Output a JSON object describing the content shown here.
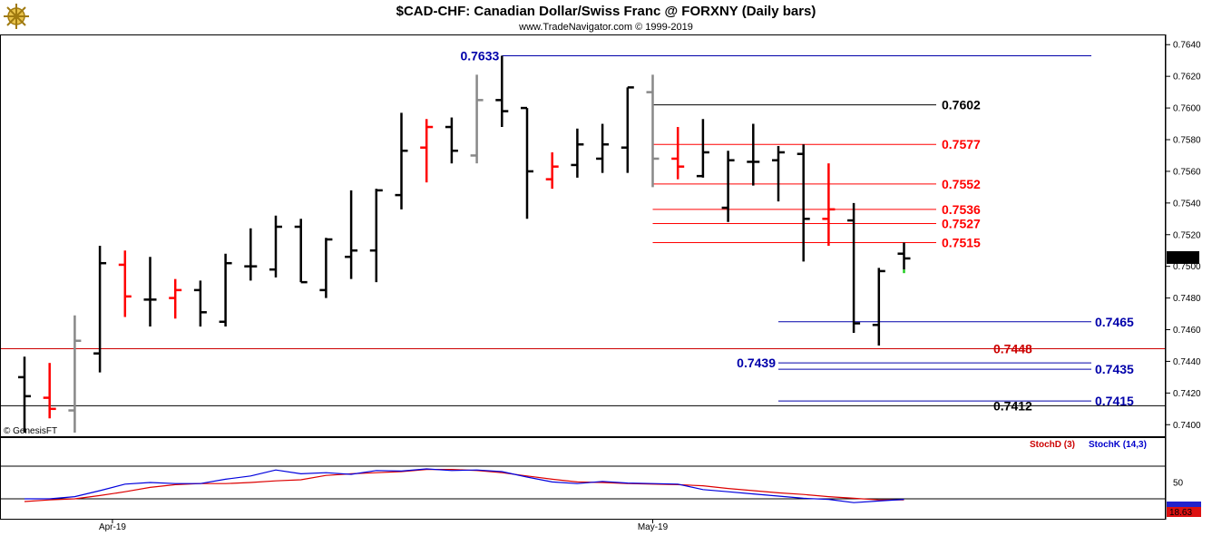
{
  "header": {
    "title": "$CAD-CHF:  Canadian Dollar/Swiss Franc @ FORXNY  (Daily bars)",
    "copyright": "www.TradeNavigator.com © 1999-2019",
    "watermark": "© GenesisFT",
    "logo_icon": "ship-wheel-icon"
  },
  "colors": {
    "black": "#000000",
    "red": "#ff0000",
    "gray": "#888888",
    "blue": "#0000ff",
    "darkred": "#cc0000",
    "navy": "#0000aa",
    "green": "#22cc22"
  },
  "chart_data": [
    {
      "type": "ohlc",
      "y_range": [
        0.7395,
        0.7643
      ],
      "y_ticks": [
        "0.7640",
        "0.7620",
        "0.7600",
        "0.7580",
        "0.7560",
        "0.7540",
        "0.7520",
        "0.7500",
        "0.7480",
        "0.7460",
        "0.7440",
        "0.7420",
        "0.7400"
      ],
      "x_labels": [
        {
          "label": "Apr-19",
          "bar": 3.5
        },
        {
          "label": "May-19",
          "bar": 25
        }
      ],
      "last_price": "0.7505",
      "bars": [
        {
          "o": 0.743,
          "h": 0.7443,
          "l": 0.7395,
          "c": 0.7418,
          "color": "black"
        },
        {
          "o": 0.7417,
          "h": 0.7439,
          "l": 0.7404,
          "c": 0.741,
          "color": "red"
        },
        {
          "o": 0.7409,
          "h": 0.7469,
          "l": 0.7395,
          "c": 0.7453,
          "color": "gray"
        },
        {
          "o": 0.7445,
          "h": 0.7513,
          "l": 0.7433,
          "c": 0.7502,
          "color": "black"
        },
        {
          "o": 0.7501,
          "h": 0.751,
          "l": 0.7468,
          "c": 0.7481,
          "color": "red"
        },
        {
          "o": 0.7479,
          "h": 0.7506,
          "l": 0.7462,
          "c": 0.7479,
          "color": "black"
        },
        {
          "o": 0.748,
          "h": 0.7492,
          "l": 0.7467,
          "c": 0.7485,
          "color": "red"
        },
        {
          "o": 0.7485,
          "h": 0.7491,
          "l": 0.7462,
          "c": 0.7471,
          "color": "black"
        },
        {
          "o": 0.7465,
          "h": 0.7508,
          "l": 0.7462,
          "c": 0.7502,
          "color": "black"
        },
        {
          "o": 0.75,
          "h": 0.7524,
          "l": 0.7491,
          "c": 0.75,
          "color": "black"
        },
        {
          "o": 0.7498,
          "h": 0.7532,
          "l": 0.7493,
          "c": 0.7525,
          "color": "black"
        },
        {
          "o": 0.7525,
          "h": 0.753,
          "l": 0.749,
          "c": 0.749,
          "color": "black"
        },
        {
          "o": 0.7485,
          "h": 0.7518,
          "l": 0.748,
          "c": 0.7517,
          "color": "black"
        },
        {
          "o": 0.7506,
          "h": 0.7548,
          "l": 0.7492,
          "c": 0.751,
          "color": "black"
        },
        {
          "o": 0.751,
          "h": 0.7549,
          "l": 0.749,
          "c": 0.7548,
          "color": "black"
        },
        {
          "o": 0.7545,
          "h": 0.7597,
          "l": 0.7536,
          "c": 0.7573,
          "color": "black"
        },
        {
          "o": 0.7575,
          "h": 0.7593,
          "l": 0.7553,
          "c": 0.7588,
          "color": "red"
        },
        {
          "o": 0.7588,
          "h": 0.7594,
          "l": 0.7565,
          "c": 0.7573,
          "color": "black"
        },
        {
          "o": 0.757,
          "h": 0.7621,
          "l": 0.7565,
          "c": 0.7605,
          "color": "gray"
        },
        {
          "o": 0.7605,
          "h": 0.7633,
          "l": 0.7588,
          "c": 0.7598,
          "color": "black"
        },
        {
          "o": 0.76,
          "h": 0.76,
          "l": 0.753,
          "c": 0.756,
          "color": "black"
        },
        {
          "o": 0.7555,
          "h": 0.7572,
          "l": 0.7549,
          "c": 0.7563,
          "color": "red"
        },
        {
          "o": 0.7564,
          "h": 0.7587,
          "l": 0.7556,
          "c": 0.7577,
          "color": "black"
        },
        {
          "o": 0.7568,
          "h": 0.759,
          "l": 0.7559,
          "c": 0.7577,
          "color": "black"
        },
        {
          "o": 0.7575,
          "h": 0.7613,
          "l": 0.7559,
          "c": 0.7613,
          "color": "black"
        },
        {
          "o": 0.761,
          "h": 0.7621,
          "l": 0.755,
          "c": 0.7568,
          "color": "gray"
        },
        {
          "o": 0.7568,
          "h": 0.7588,
          "l": 0.7555,
          "c": 0.7563,
          "color": "red"
        },
        {
          "o": 0.7557,
          "h": 0.7593,
          "l": 0.7556,
          "c": 0.7572,
          "color": "black"
        },
        {
          "o": 0.7537,
          "h": 0.7573,
          "l": 0.7528,
          "c": 0.7567,
          "color": "black"
        },
        {
          "o": 0.7566,
          "h": 0.759,
          "l": 0.7551,
          "c": 0.7566,
          "color": "black"
        },
        {
          "o": 0.7567,
          "h": 0.7576,
          "l": 0.7541,
          "c": 0.7572,
          "color": "black"
        },
        {
          "o": 0.7571,
          "h": 0.7577,
          "l": 0.7503,
          "c": 0.753,
          "color": "black"
        },
        {
          "o": 0.753,
          "h": 0.7565,
          "l": 0.7513,
          "c": 0.7536,
          "color": "red"
        },
        {
          "o": 0.7529,
          "h": 0.754,
          "l": 0.7458,
          "c": 0.7464,
          "color": "black"
        },
        {
          "o": 0.7463,
          "h": 0.7499,
          "l": 0.745,
          "c": 0.7497,
          "color": "black"
        },
        {
          "o": 0.7508,
          "h": 0.7515,
          "l": 0.7498,
          "c": 0.7505,
          "color": "black"
        }
      ],
      "horizontal_levels": [
        {
          "label": "0.7633",
          "value": 0.7633,
          "color": "navy",
          "from_bar": 19,
          "label_side": "left"
        },
        {
          "label": "0.7602",
          "value": 0.7602,
          "color": "black",
          "from_bar": 25,
          "label_side": "right"
        },
        {
          "label": "0.7577",
          "value": 0.7577,
          "color": "red",
          "from_bar": 25,
          "label_side": "right"
        },
        {
          "label": "0.7552",
          "value": 0.7552,
          "color": "red",
          "from_bar": 25,
          "label_side": "right"
        },
        {
          "label": "0.7536",
          "value": 0.7536,
          "color": "red",
          "from_bar": 25,
          "label_side": "right"
        },
        {
          "label": "0.7527",
          "value": 0.7527,
          "color": "red",
          "from_bar": 25,
          "label_side": "right"
        },
        {
          "label": "0.7515",
          "value": 0.7515,
          "color": "red",
          "from_bar": 25,
          "label_side": "right"
        },
        {
          "label": "0.7465",
          "value": 0.7465,
          "color": "navy",
          "from_bar": 30,
          "label_side": "far"
        },
        {
          "label": "0.7448",
          "value": 0.7448,
          "color": "darkred",
          "from_bar": -1,
          "label_side": "right"
        },
        {
          "label": "0.7439",
          "value": 0.7439,
          "color": "navy",
          "from_bar": 30,
          "label_side": "left"
        },
        {
          "label": "0.7435",
          "value": 0.7435,
          "color": "navy",
          "from_bar": 30,
          "label_side": "far"
        },
        {
          "label": "0.7415",
          "value": 0.7415,
          "color": "navy",
          "from_bar": 30,
          "label_side": "far"
        },
        {
          "label": "0.7412",
          "value": 0.7412,
          "color": "black",
          "from_bar": -1,
          "label_side": "right"
        }
      ]
    },
    {
      "type": "line",
      "y_range": [
        0,
        100
      ],
      "y_ticks": [
        "50"
      ],
      "last_value": "18.63",
      "series": [
        {
          "name": "StochD (3)",
          "color": "red",
          "values": [
            15,
            18,
            20,
            26,
            33,
            41,
            46,
            48,
            48,
            50,
            53,
            55,
            63,
            66,
            68,
            70,
            74,
            74,
            72,
            68,
            62,
            56,
            51,
            50,
            48,
            47,
            46,
            44,
            39,
            35,
            31,
            28,
            24,
            21,
            18,
            18
          ]
        },
        {
          "name": "StochK (14,3)",
          "color": "blue",
          "values": [
            20,
            20,
            24,
            35,
            47,
            50,
            48,
            48,
            56,
            62,
            73,
            66,
            68,
            65,
            72,
            71,
            75,
            72,
            73,
            70,
            60,
            51,
            48,
            52,
            49,
            48,
            47,
            37,
            33,
            29,
            25,
            21,
            19,
            13,
            16,
            19
          ]
        }
      ]
    }
  ]
}
